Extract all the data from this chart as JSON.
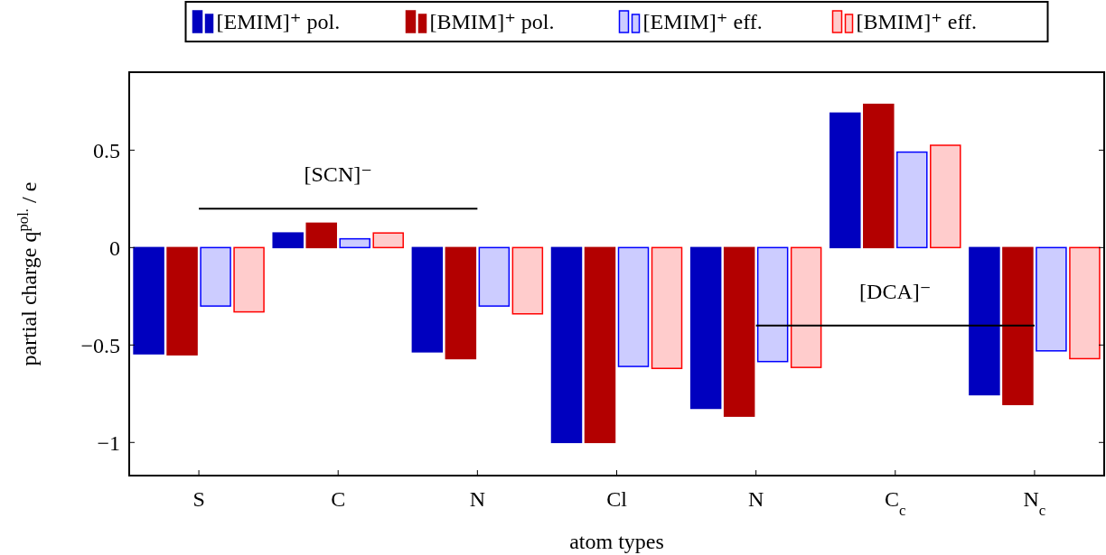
{
  "chart_data": {
    "type": "bar",
    "categories": [
      "S",
      "C",
      "N",
      "Cl",
      "N",
      "C$_{c}$",
      "N$_{c}$"
    ],
    "xlabel": "atom types",
    "ylabel": "partial charge q$^{pol.}$ / e",
    "series": [
      {
        "name": "[EMIM]⁺ pol.",
        "color": "#0000bf",
        "values": [
          -0.545,
          0.075,
          -0.535,
          -1.0,
          -0.825,
          0.69,
          -0.755
        ]
      },
      {
        "name": "[BMIM]⁺ pol.",
        "color": "#b30000",
        "values": [
          -0.55,
          0.125,
          -0.57,
          -1.0,
          -0.865,
          0.735,
          -0.805
        ]
      },
      {
        "name": "[EMIM]⁺ eff.",
        "color": "#ccccff",
        "values": [
          -0.3,
          0.045,
          -0.3,
          -0.61,
          -0.585,
          0.49,
          -0.53
        ]
      },
      {
        "name": "[BMIM]⁺ eff.",
        "color": "#ffcccc",
        "values": [
          -0.33,
          0.075,
          -0.34,
          -0.62,
          -0.615,
          0.525,
          -0.57
        ]
      },
      {
        "type": "line",
        "color": "#000000",
        "values": [
          0.2,
          0.2,
          0.2,
          null,
          null,
          null,
          null
        ]
      },
      {
        "type": "line",
        "color": "#000000",
        "values": [
          null,
          null,
          null,
          null,
          -0.4,
          -0.4,
          -0.4
        ]
      }
    ],
    "annotations": [
      {
        "text": "[SCN]⁻",
        "x": "C",
        "y": 0.2
      },
      {
        "text": "[DCA]⁻",
        "x": "C$_{c}$",
        "y": -0.4
      }
    ],
    "ylim": [
      -1.17,
      0.9
    ],
    "yticks": [
      {
        "value": -1,
        "label": "−1"
      },
      {
        "value": -0.5,
        "label": "−0.5"
      },
      0,
      0.5
    ],
    "legend": "top",
    "grid": false
  }
}
